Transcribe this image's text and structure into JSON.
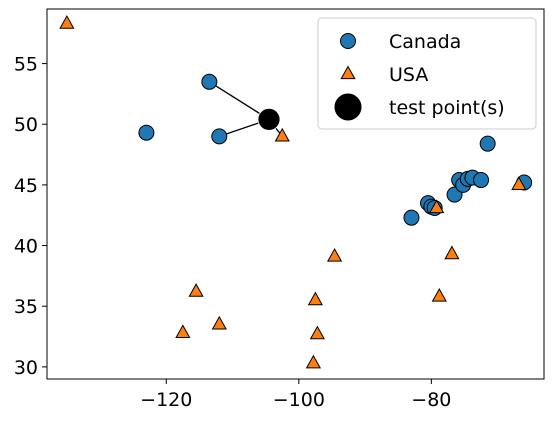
{
  "chart_data": {
    "type": "scatter",
    "xlim": [
      -138,
      -63
    ],
    "ylim": [
      29,
      59.5
    ],
    "xticks": [
      -120,
      -100,
      -80
    ],
    "yticks": [
      30,
      35,
      40,
      45,
      50,
      55
    ],
    "grid": false,
    "legend_position": "top-right",
    "series": [
      {
        "name": "Canada",
        "marker": "circle",
        "color": "#1f77b4",
        "points": [
          {
            "x": -123,
            "y": 49.3
          },
          {
            "x": -113.5,
            "y": 53.5
          },
          {
            "x": -112,
            "y": 49
          },
          {
            "x": -83,
            "y": 42.3
          },
          {
            "x": -80.5,
            "y": 43.5
          },
          {
            "x": -80,
            "y": 43.2
          },
          {
            "x": -79.5,
            "y": 43.1
          },
          {
            "x": -76.5,
            "y": 44.2
          },
          {
            "x": -75.8,
            "y": 45.4
          },
          {
            "x": -75.2,
            "y": 45
          },
          {
            "x": -74.5,
            "y": 45.5
          },
          {
            "x": -73.8,
            "y": 45.6
          },
          {
            "x": -72.5,
            "y": 45.4
          },
          {
            "x": -71.5,
            "y": 48.4
          },
          {
            "x": -66,
            "y": 45.2
          }
        ]
      },
      {
        "name": "USA",
        "marker": "triangle",
        "color": "#ff7f0e",
        "points": [
          {
            "x": -135,
            "y": 58.3
          },
          {
            "x": -117.5,
            "y": 32.8
          },
          {
            "x": -115.5,
            "y": 36.2
          },
          {
            "x": -112,
            "y": 33.5
          },
          {
            "x": -102.5,
            "y": 49
          },
          {
            "x": -97.5,
            "y": 35.5
          },
          {
            "x": -97.2,
            "y": 32.7
          },
          {
            "x": -97.8,
            "y": 30.3
          },
          {
            "x": -94.6,
            "y": 39.1
          },
          {
            "x": -79.2,
            "y": 43.1
          },
          {
            "x": -78.8,
            "y": 35.8
          },
          {
            "x": -76.9,
            "y": 39.3
          },
          {
            "x": -66.8,
            "y": 45
          }
        ]
      },
      {
        "name": "test point(s)",
        "marker": "circle",
        "color": "#000000",
        "points": [
          {
            "x": -104.5,
            "y": 50.4
          }
        ]
      }
    ],
    "neighbor_links": [
      {
        "from": [
          -104.5,
          50.4
        ],
        "to": [
          -113.5,
          53.5
        ]
      },
      {
        "from": [
          -104.5,
          50.4
        ],
        "to": [
          -112,
          49
        ]
      },
      {
        "from": [
          -104.5,
          50.4
        ],
        "to": [
          -102.5,
          49
        ]
      }
    ]
  }
}
